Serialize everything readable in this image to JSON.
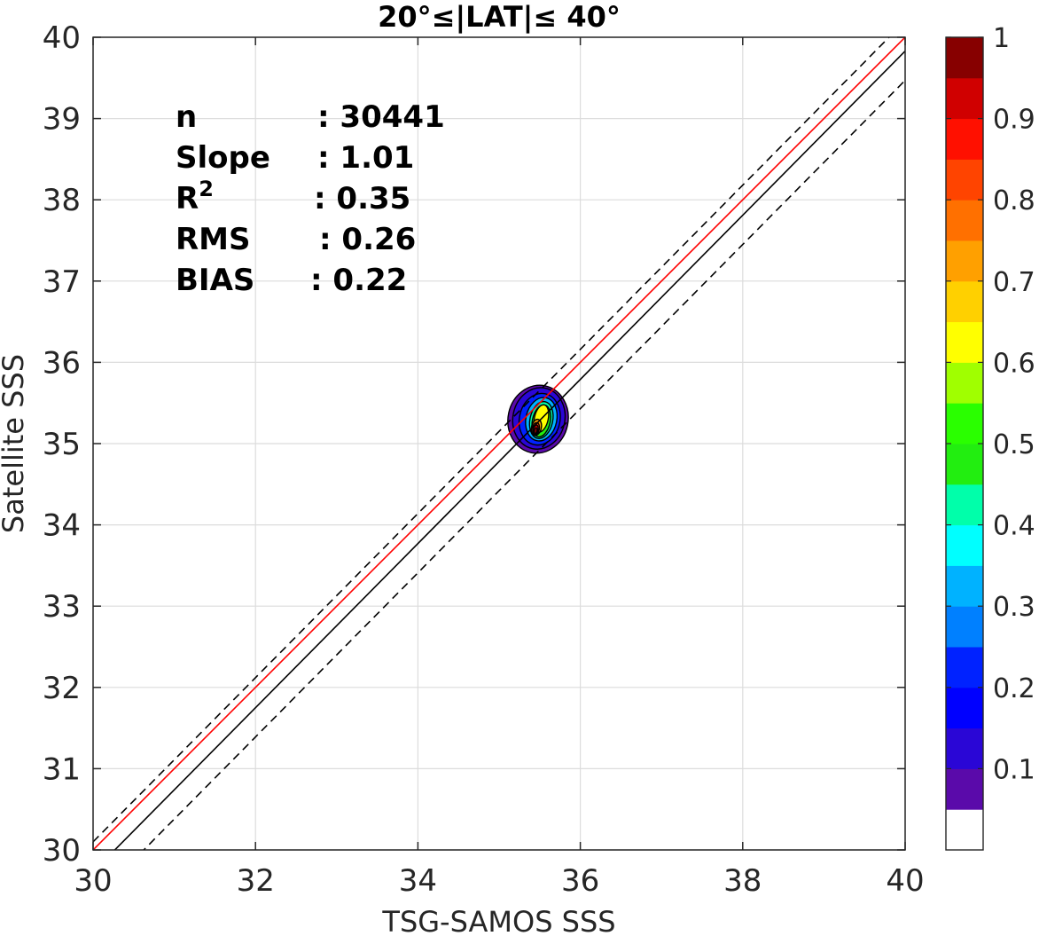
{
  "chart_data": {
    "type": "contour",
    "title": "20°≤|LAT|≤ 40°",
    "xlabel": "TSG-SAMOS SSS",
    "ylabel": "Satellite SSS",
    "xlim": [
      30,
      40
    ],
    "ylim": [
      30,
      40
    ],
    "xticks": [
      "30",
      "32",
      "34",
      "36",
      "38",
      "40"
    ],
    "yticks": [
      "30",
      "31",
      "32",
      "33",
      "34",
      "35",
      "36",
      "37",
      "38",
      "39",
      "40"
    ],
    "grid": true,
    "stats": [
      {
        "label": "n",
        "value": ": 30441"
      },
      {
        "label": "Slope",
        "value": ": 1.01"
      },
      {
        "label": "R",
        "sup": "2",
        "value": ": 0.35"
      },
      {
        "label": "RMS",
        "value": ": 0.26"
      },
      {
        "label": "BIAS",
        "value": ": 0.22"
      }
    ],
    "lines": [
      {
        "role": "one-to-one",
        "color": "#ff0000",
        "style": "solid",
        "slope": 1,
        "intercept": 0
      },
      {
        "role": "fit",
        "color": "#000000",
        "style": "solid",
        "slope": 1.01,
        "intercept": -0.57
      },
      {
        "role": "fit-upper",
        "color": "#000000",
        "style": "dashed",
        "slope": 1.01,
        "intercept": -0.2
      },
      {
        "role": "fit-lower",
        "color": "#000000",
        "style": "dashed",
        "slope": 1.01,
        "intercept": -0.93
      }
    ],
    "density_center": {
      "x": 35.48,
      "y": 35.2
    },
    "density_levels": [
      {
        "level": 0.05,
        "rx": 0.37,
        "ry": 0.42,
        "cx": 35.48,
        "cy": 35.3,
        "color": "#5a0aaa"
      },
      {
        "level": 0.1,
        "rx": 0.32,
        "ry": 0.38,
        "cx": 35.49,
        "cy": 35.31,
        "color": "#2a06d6"
      },
      {
        "level": 0.2,
        "rx": 0.25,
        "ry": 0.32,
        "cx": 35.5,
        "cy": 35.3,
        "color": "#0022ff"
      },
      {
        "level": 0.3,
        "rx": 0.19,
        "ry": 0.27,
        "cx": 35.52,
        "cy": 35.3,
        "color": "#00b2ff"
      },
      {
        "level": 0.4,
        "rx": 0.14,
        "ry": 0.23,
        "cx": 35.52,
        "cy": 35.29,
        "color": "#00ffaa"
      },
      {
        "level": 0.5,
        "rx": 0.11,
        "ry": 0.2,
        "cx": 35.52,
        "cy": 35.28,
        "color": "#22ee10"
      },
      {
        "level": 0.6,
        "rx": 0.085,
        "ry": 0.17,
        "cx": 35.52,
        "cy": 35.31,
        "color": "#ffff00"
      },
      {
        "level": 0.7,
        "rx": 0.06,
        "ry": 0.1,
        "cx": 35.46,
        "cy": 35.2,
        "color": "#ffa000"
      },
      {
        "level": 0.8,
        "rx": 0.045,
        "ry": 0.08,
        "cx": 35.45,
        "cy": 35.18,
        "color": "#ff4400"
      },
      {
        "level": 0.9,
        "rx": 0.03,
        "ry": 0.06,
        "cx": 35.45,
        "cy": 35.17,
        "color": "#d00000"
      },
      {
        "level": 1.0,
        "rx": 0.018,
        "ry": 0.035,
        "cx": 35.45,
        "cy": 35.16,
        "color": "#870000"
      }
    ],
    "colorbar": {
      "ticks": [
        "0.1",
        "0.2",
        "0.3",
        "0.4",
        "0.5",
        "0.6",
        "0.7",
        "0.8",
        "0.9",
        "1"
      ],
      "colors": [
        "#ffffff",
        "#5a0aaa",
        "#2a06d6",
        "#0000ff",
        "#0022ff",
        "#0080ff",
        "#00b2ff",
        "#00ffff",
        "#00ffaa",
        "#22ee10",
        "#2aff00",
        "#a0ff00",
        "#ffff00",
        "#ffd000",
        "#ffa000",
        "#ff7000",
        "#ff4400",
        "#ff1000",
        "#d00000",
        "#870000"
      ]
    }
  }
}
